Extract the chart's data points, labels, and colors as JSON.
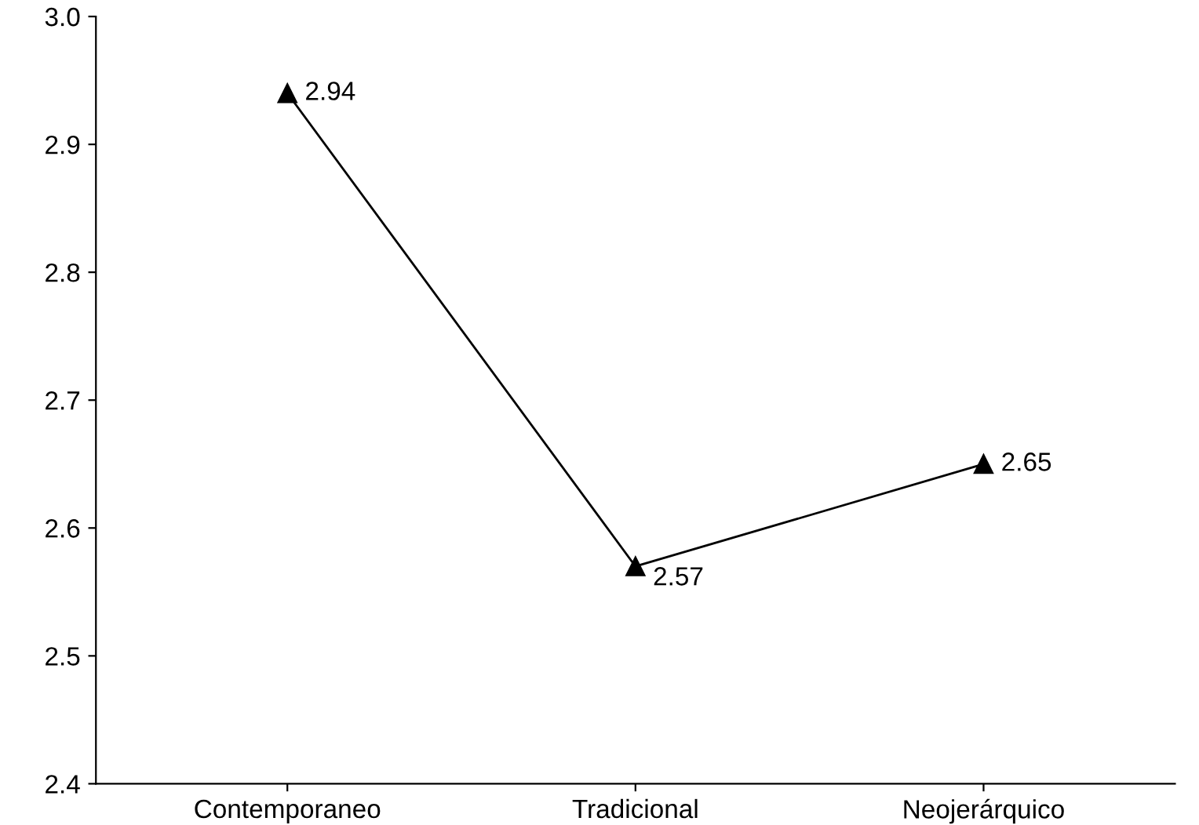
{
  "chart_data": {
    "type": "line",
    "categories": [
      "Contemporaneo",
      "Tradicional",
      "Neojerárquico"
    ],
    "series": [
      {
        "color": "#000000",
        "values": [
          2.94,
          2.57,
          2.65
        ]
      }
    ],
    "ylim": [
      2.4,
      3.0
    ],
    "yticks": [
      {
        "value": 2.4,
        "label": "2.4"
      },
      {
        "value": 2.5,
        "label": "2.5"
      },
      {
        "value": 2.6,
        "label": "2.6"
      },
      {
        "value": 2.7,
        "label": "2.7"
      },
      {
        "value": 2.8,
        "label": "2.8"
      },
      {
        "value": 2.9,
        "label": "2.9"
      },
      {
        "value": 3.0,
        "label": "3.0"
      }
    ],
    "marker": "triangle",
    "line_style": "solid",
    "data_labels": true,
    "grid": false,
    "legend": false
  }
}
